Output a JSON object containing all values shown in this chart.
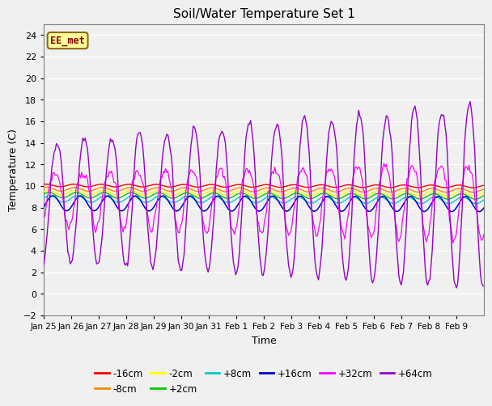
{
  "title": "Soil/Water Temperature Set 1",
  "xlabel": "Time",
  "ylabel": "Temperature (C)",
  "annotation": "EE_met",
  "annotation_color": "#8B0000",
  "annotation_bg": "#FFFF99",
  "ylim": [
    -2,
    25
  ],
  "yticks": [
    -2,
    0,
    2,
    4,
    6,
    8,
    10,
    12,
    14,
    16,
    18,
    20,
    22,
    24
  ],
  "bg_color": "#F0F0F0",
  "series": {
    "-16cm": {
      "color": "#FF0000"
    },
    "-8cm": {
      "color": "#FF8800"
    },
    "-2cm": {
      "color": "#FFFF00"
    },
    "+2cm": {
      "color": "#00CC00"
    },
    "+8cm": {
      "color": "#00CCCC"
    },
    "+16cm": {
      "color": "#0000CC"
    },
    "+32cm": {
      "color": "#FF00FF"
    },
    "+64cm": {
      "color": "#9900CC"
    }
  },
  "xtick_labels": [
    "Jan 25",
    "Jan 26",
    "Jan 27",
    "Jan 28",
    "Jan 29",
    "Jan 30",
    "Jan 31",
    "Feb 1",
    "Feb 2",
    "Feb 3",
    "Feb 4",
    "Feb 5",
    "Feb 6",
    "Feb 7",
    "Feb 8",
    "Feb 9"
  ],
  "legend_order": [
    "-16cm",
    "-8cm",
    "-2cm",
    "+2cm",
    "+8cm",
    "+16cm",
    "+32cm",
    "+64cm"
  ]
}
